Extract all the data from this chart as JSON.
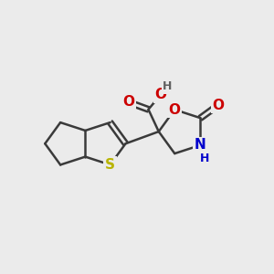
{
  "bg_color": "#ebebeb",
  "bond_color": "#3a3a3a",
  "bond_width": 1.8,
  "atom_colors": {
    "S": "#b8b400",
    "O": "#cc0000",
    "N": "#0000cc",
    "H": "#606060",
    "C": "#3a3a3a"
  },
  "font_size_atom": 11,
  "font_size_H": 9,
  "figsize": [
    3.0,
    3.0
  ],
  "dpi": 100
}
